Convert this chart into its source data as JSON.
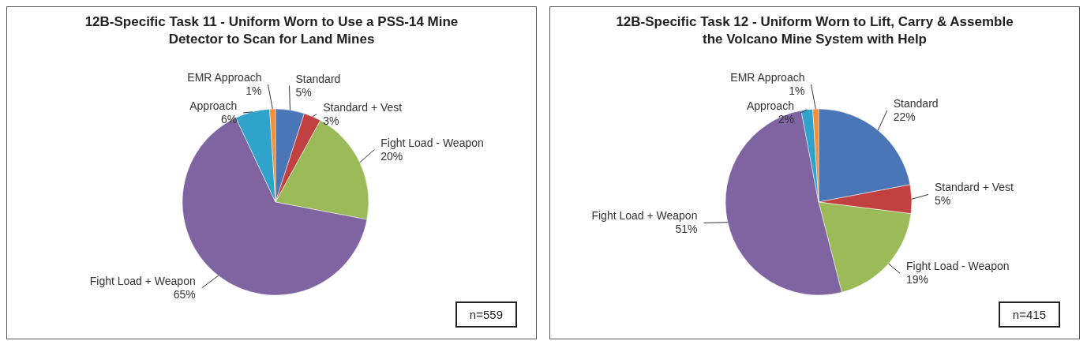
{
  "chart_data": [
    {
      "type": "pie",
      "title": "12B-Specific Task 11 - Uniform Worn to Use a PSS-14 Mine Detector to Scan for Land Mines",
      "categories": [
        "Standard",
        "Standard + Vest",
        "Fight Load - Weapon",
        "Fight Load + Weapon",
        "Approach",
        "EMR Approach"
      ],
      "values": [
        5,
        3,
        20,
        65,
        6,
        1
      ],
      "value_labels": [
        "5%",
        "3%",
        "20%",
        "65%",
        "6%",
        "1%"
      ],
      "colors": [
        "#4a76b8",
        "#c0413f",
        "#9bbb59",
        "#8064a2",
        "#2fa3c9",
        "#f0903c"
      ],
      "annotations": [
        "n=559"
      ],
      "legend": false
    },
    {
      "type": "pie",
      "title": "12B-Specific Task 12 - Uniform Worn to Lift, Carry & Assemble the Volcano Mine System with Help",
      "categories": [
        "Standard",
        "Standard + Vest",
        "Fight Load - Weapon",
        "Fight Load + Weapon",
        "Approach",
        "EMR Approach"
      ],
      "values": [
        22,
        5,
        19,
        51,
        2,
        1
      ],
      "value_labels": [
        "22%",
        "5%",
        "19%",
        "51%",
        "2%",
        "1%"
      ],
      "colors": [
        "#4a76b8",
        "#c0413f",
        "#9bbb59",
        "#8064a2",
        "#2fa3c9",
        "#f0903c"
      ],
      "annotations": [
        "n=415"
      ],
      "legend": false
    }
  ]
}
